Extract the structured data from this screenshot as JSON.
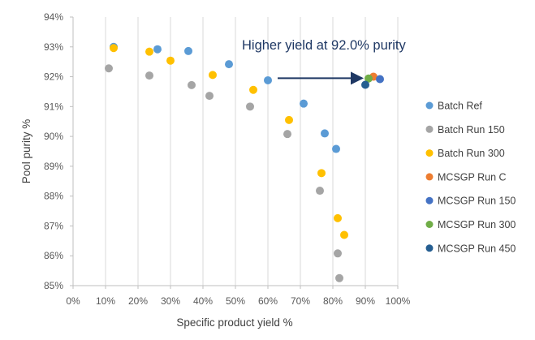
{
  "chart_data": {
    "type": "scatter",
    "title": "",
    "xlabel": "Specific product yield %",
    "ylabel": "Pool purity %",
    "xlim": [
      0,
      100
    ],
    "ylim": [
      85,
      94
    ],
    "x_ticks": [
      0,
      10,
      20,
      30,
      40,
      50,
      60,
      70,
      80,
      90,
      100
    ],
    "y_ticks": [
      85,
      86,
      87,
      88,
      89,
      90,
      91,
      92,
      93,
      94
    ],
    "x_tick_labels": [
      "0%",
      "10%",
      "20%",
      "30%",
      "40%",
      "50%",
      "60%",
      "70%",
      "80%",
      "90%",
      "100%"
    ],
    "y_tick_labels": [
      "85%",
      "86%",
      "87%",
      "88%",
      "89%",
      "90%",
      "91%",
      "92%",
      "93%",
      "94%"
    ],
    "grid": "vertical",
    "legend_position": "right",
    "annotation": {
      "text": "Higher yield at 92.0% purity",
      "arrow_from": [
        63,
        91.95
      ],
      "arrow_to": [
        89,
        91.95
      ],
      "color": "#1f3864"
    },
    "series": [
      {
        "name": "Batch Ref",
        "color": "#5b9bd5",
        "points": [
          [
            12.5,
            93.0
          ],
          [
            26.0,
            92.92
          ],
          [
            35.5,
            92.86
          ],
          [
            48.0,
            92.42
          ],
          [
            60.0,
            91.88
          ],
          [
            71.0,
            91.1
          ],
          [
            77.5,
            90.1
          ],
          [
            81.0,
            89.58
          ]
        ]
      },
      {
        "name": "Batch Run 150",
        "color": "#a5a5a5",
        "points": [
          [
            11.0,
            92.28
          ],
          [
            23.5,
            92.04
          ],
          [
            36.5,
            91.72
          ],
          [
            42.0,
            91.36
          ],
          [
            54.5,
            91.0
          ],
          [
            66.0,
            90.08
          ],
          [
            76.0,
            88.18
          ],
          [
            81.5,
            86.08
          ],
          [
            82.0,
            85.25
          ]
        ]
      },
      {
        "name": "Batch Run 300",
        "color": "#ffc000",
        "points": [
          [
            12.5,
            92.96
          ],
          [
            23.5,
            92.84
          ],
          [
            30.0,
            92.54
          ],
          [
            43.0,
            92.06
          ],
          [
            55.5,
            91.56
          ],
          [
            66.5,
            90.55
          ],
          [
            76.5,
            88.77
          ],
          [
            81.5,
            87.26
          ],
          [
            83.5,
            86.7
          ]
        ]
      },
      {
        "name": "MCSGP Run C",
        "color": "#ed7d31",
        "points": [
          [
            92.5,
            92.0
          ]
        ]
      },
      {
        "name": "MCSGP Run 150",
        "color": "#4472c4",
        "points": [
          [
            94.5,
            91.92
          ]
        ]
      },
      {
        "name": "MCSGP Run 300",
        "color": "#70ad47",
        "points": [
          [
            91.0,
            91.94
          ]
        ]
      },
      {
        "name": "MCSGP Run 450",
        "color": "#255e91",
        "points": [
          [
            90.0,
            91.73
          ]
        ]
      }
    ]
  }
}
